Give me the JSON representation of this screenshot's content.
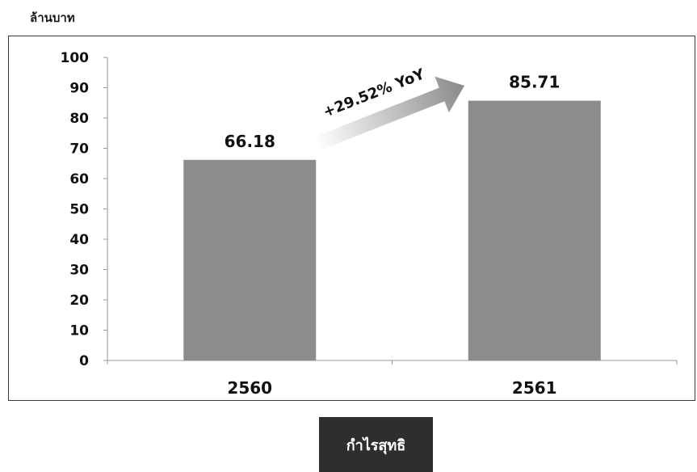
{
  "unit_label": "ล้านบาท",
  "legend_label": "กำไรสุทธิ",
  "annotation": "+29.52% YoY",
  "colors": {
    "bar": "#8c8c8c",
    "arrow_start": "#ffffff",
    "arrow_end": "#8a8a8a",
    "legend_bg": "#2e2e2e"
  },
  "chart_data": {
    "type": "bar",
    "categories": [
      "2560",
      "2561"
    ],
    "values": [
      66.18,
      85.71
    ],
    "data_labels": [
      "66.18",
      "85.71"
    ],
    "ylabel": "ล้านบาท",
    "ylim": [
      0,
      100
    ],
    "yticks": [
      0,
      10,
      20,
      30,
      40,
      50,
      60,
      70,
      80,
      90,
      100
    ],
    "grid": false,
    "legend": "bottom-center"
  }
}
